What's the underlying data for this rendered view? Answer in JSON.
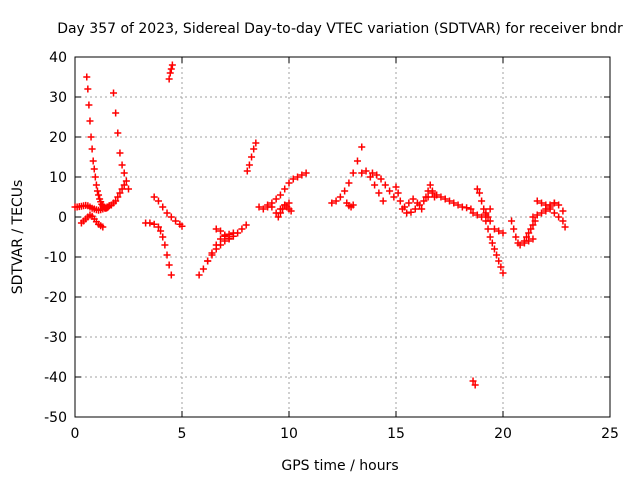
{
  "chart_data": {
    "type": "scatter",
    "title": "Day 357 of 2023, Sidereal Day-to-day VTEC variation (SDTVAR) for receiver bndr",
    "xlabel": "GPS time / hours",
    "ylabel": "SDTVAR / TECUs",
    "xlim": [
      0,
      25
    ],
    "ylim": [
      -50,
      40
    ],
    "xticks": [
      0,
      5,
      10,
      15,
      20,
      25
    ],
    "yticks": [
      -50,
      -40,
      -30,
      -20,
      -10,
      0,
      10,
      20,
      30,
      40
    ],
    "grid": true,
    "marker": "+",
    "color": "#ff0000",
    "series": [
      {
        "name": "s1",
        "x": [
          0.0,
          0.1,
          0.2,
          0.3,
          0.4,
          0.5,
          0.6,
          0.7,
          0.8,
          0.9,
          1.0,
          1.1,
          1.2,
          1.3,
          1.4,
          1.5,
          1.6,
          1.7,
          1.8,
          1.9,
          2.0,
          2.1,
          2.2,
          2.3
        ],
        "y": [
          2.5,
          2.5,
          2.6,
          2.7,
          2.8,
          2.9,
          2.8,
          2.5,
          2.2,
          2.0,
          1.8,
          1.7,
          1.8,
          2.0,
          2.2,
          2.5,
          2.8,
          3.0,
          3.5,
          4.0,
          5.0,
          6.0,
          7.0,
          8.0
        ]
      },
      {
        "name": "s2",
        "x": [
          0.55,
          0.6,
          0.65,
          0.7,
          0.75,
          0.8,
          0.85,
          0.9,
          0.95,
          1.0,
          1.05,
          1.1,
          1.15,
          1.2,
          1.25,
          1.3,
          1.35,
          1.4,
          1.45,
          1.5,
          1.55,
          1.6
        ],
        "y": [
          35,
          32,
          28,
          24,
          20,
          17,
          14,
          12,
          10,
          8,
          6.5,
          5.5,
          4.5,
          3.8,
          3.2,
          2.8,
          2.5,
          2.3,
          2.2,
          2.3,
          2.5,
          2.8
        ]
      },
      {
        "name": "s3",
        "x": [
          0.3,
          0.4,
          0.5,
          0.6,
          0.7,
          0.8,
          0.9,
          1.0,
          1.1,
          1.2,
          1.3
        ],
        "y": [
          -1.5,
          -1.0,
          -0.5,
          0.0,
          0.5,
          0.2,
          -0.5,
          -1.2,
          -1.8,
          -2.2,
          -2.5
        ]
      },
      {
        "name": "s4",
        "x": [
          1.8,
          1.9,
          2.0,
          2.1,
          2.2,
          2.3,
          2.4,
          2.5
        ],
        "y": [
          31,
          26,
          21,
          16,
          13,
          11,
          9,
          7
        ]
      },
      {
        "name": "s5",
        "x": [
          3.3,
          3.5,
          3.7,
          3.9,
          4.0,
          4.1,
          4.2,
          4.3,
          4.4,
          4.5
        ],
        "y": [
          -1.5,
          -1.5,
          -1.8,
          -2.5,
          -3.5,
          -5.0,
          -7.0,
          -9.5,
          -12,
          -14.5
        ]
      },
      {
        "name": "s6",
        "x": [
          3.7,
          3.9,
          4.1,
          4.3,
          4.5,
          4.7,
          4.9,
          5.0
        ],
        "y": [
          5.0,
          4.0,
          2.5,
          1.0,
          0.0,
          -1.0,
          -1.8,
          -2.3
        ]
      },
      {
        "name": "s7",
        "x": [
          4.4,
          4.45,
          4.5,
          4.55
        ],
        "y": [
          34.5,
          36,
          37,
          38
        ]
      },
      {
        "name": "s8",
        "x": [
          5.8,
          6.0,
          6.2,
          6.4,
          6.6,
          6.8,
          7.0,
          7.2,
          7.4,
          7.6,
          7.8,
          8.0
        ],
        "y": [
          -14.5,
          -13,
          -11,
          -9.5,
          -8.0,
          -7.0,
          -6.0,
          -5.3,
          -4.8,
          -4.0,
          -3.0,
          -2.0
        ]
      },
      {
        "name": "s9",
        "x": [
          6.2,
          6.4,
          6.6,
          6.8,
          7.0,
          7.2,
          7.4
        ],
        "y": [
          -11,
          -9,
          -7,
          -5.5,
          -4.8,
          -4.3,
          -4.0
        ]
      },
      {
        "name": "s10",
        "x": [
          6.6,
          6.8,
          7.0,
          7.2
        ],
        "y": [
          -3.0,
          -3.5,
          -4.5,
          -5.5
        ]
      },
      {
        "name": "s11",
        "x": [
          8.05,
          8.15,
          8.25,
          8.35,
          8.45
        ],
        "y": [
          11.5,
          13,
          15,
          17,
          18.5
        ]
      },
      {
        "name": "s12",
        "x": [
          8.6,
          8.8,
          9.0,
          9.2,
          9.4,
          9.6,
          9.8,
          10.0,
          10.2,
          10.4,
          10.6,
          10.8
        ],
        "y": [
          2.5,
          2.0,
          2.5,
          3.5,
          4.5,
          5.5,
          7.0,
          8.5,
          9.5,
          10.0,
          10.5,
          11.0
        ]
      },
      {
        "name": "s13",
        "x": [
          9.0,
          9.2,
          9.4,
          9.6,
          9.8,
          10.0
        ],
        "y": [
          3.0,
          2.5,
          1.0,
          2.0,
          3.0,
          3.5
        ]
      },
      {
        "name": "s14",
        "x": [
          9.5,
          9.6,
          9.7,
          9.8,
          9.9,
          10.0,
          10.1
        ],
        "y": [
          0.0,
          1.0,
          2.0,
          3.0,
          2.5,
          2.0,
          1.5
        ]
      },
      {
        "name": "s15",
        "x": [
          12.0,
          12.2,
          12.4,
          12.6,
          12.8,
          13.0,
          13.2,
          13.4
        ],
        "y": [
          3.5,
          4.0,
          5.0,
          6.5,
          8.5,
          11,
          14,
          17.5
        ]
      },
      {
        "name": "s16",
        "x": [
          12.7,
          12.8,
          12.9,
          13.0
        ],
        "y": [
          3.5,
          2.8,
          2.5,
          3.0
        ]
      },
      {
        "name": "s17",
        "x": [
          13.4,
          13.6,
          13.8,
          14.0,
          14.2,
          14.4
        ],
        "y": [
          11,
          11.5,
          10,
          8,
          6,
          4
        ]
      },
      {
        "name": "s18",
        "x": [
          13.9,
          14.1,
          14.3,
          14.5,
          14.7,
          14.9
        ],
        "y": [
          11,
          10.5,
          9.5,
          8,
          6.5,
          5
        ]
      },
      {
        "name": "s19",
        "x": [
          15.0,
          15.1,
          15.2,
          15.3,
          15.5,
          15.7,
          15.9,
          16.1,
          16.3,
          16.5,
          16.7,
          16.9,
          17.1,
          17.3,
          17.5,
          17.7,
          17.9,
          18.1,
          18.3,
          18.5
        ],
        "y": [
          7.5,
          6.0,
          4.0,
          2.0,
          1.0,
          1.2,
          2.0,
          3.0,
          4.0,
          5.0,
          6.0,
          5.5,
          5.0,
          4.5,
          4.0,
          3.5,
          3.0,
          2.5,
          2.3,
          2.0
        ]
      },
      {
        "name": "s20",
        "x": [
          15.4,
          15.6,
          15.8,
          16.0,
          16.2
        ],
        "y": [
          2.5,
          3.5,
          4.5,
          3.5,
          2.0
        ]
      },
      {
        "name": "s21",
        "x": [
          16.4,
          16.5,
          16.6,
          16.7,
          16.8
        ],
        "y": [
          5,
          6.5,
          8,
          6.5,
          5
        ]
      },
      {
        "name": "s22",
        "x": [
          18.6,
          18.7
        ],
        "y": [
          -41,
          -42
        ]
      },
      {
        "name": "s23",
        "x": [
          18.8,
          18.9,
          19.0,
          19.1,
          19.2,
          19.3,
          19.4,
          19.6,
          19.8,
          20.0
        ],
        "y": [
          7,
          6,
          4,
          2,
          1,
          0,
          -1,
          -3,
          -3.5,
          -4
        ]
      },
      {
        "name": "s24",
        "x": [
          19.2,
          19.3,
          19.4,
          19.5,
          19.6,
          19.7,
          19.8,
          19.9,
          20.0
        ],
        "y": [
          -1,
          -3,
          -5,
          -6.5,
          -8,
          -9.5,
          -11,
          -12.5,
          -14
        ]
      },
      {
        "name": "s25",
        "x": [
          18.6,
          18.8,
          19.0,
          19.2,
          19.4
        ],
        "y": [
          1,
          0.5,
          0,
          0.5,
          2
        ]
      },
      {
        "name": "s26",
        "x": [
          20.4,
          20.5,
          20.6,
          20.7,
          20.8,
          21.0,
          21.2,
          21.4
        ],
        "y": [
          -1,
          -3,
          -5,
          -6.5,
          -7,
          -6.5,
          -6,
          -5.5
        ]
      },
      {
        "name": "s27",
        "x": [
          21.0,
          21.1,
          21.2,
          21.3,
          21.4,
          21.5
        ],
        "y": [
          -6,
          -5,
          -4,
          -3,
          -2,
          -1
        ]
      },
      {
        "name": "s28",
        "x": [
          21.4,
          21.6,
          21.8,
          22.0,
          22.2,
          22.4,
          22.6,
          22.8
        ],
        "y": [
          0,
          0.5,
          1,
          2,
          3,
          3.5,
          3,
          1.5
        ]
      },
      {
        "name": "s29",
        "x": [
          21.6,
          21.8,
          22.0,
          22.2,
          22.4,
          22.6,
          22.8,
          22.9
        ],
        "y": [
          4,
          3.5,
          3,
          2,
          1,
          0,
          -1,
          -2.5
        ]
      },
      {
        "name": "s30",
        "x": [
          22.0,
          22.2,
          22.4
        ],
        "y": [
          1.5,
          2.5,
          3.5
        ]
      }
    ]
  }
}
